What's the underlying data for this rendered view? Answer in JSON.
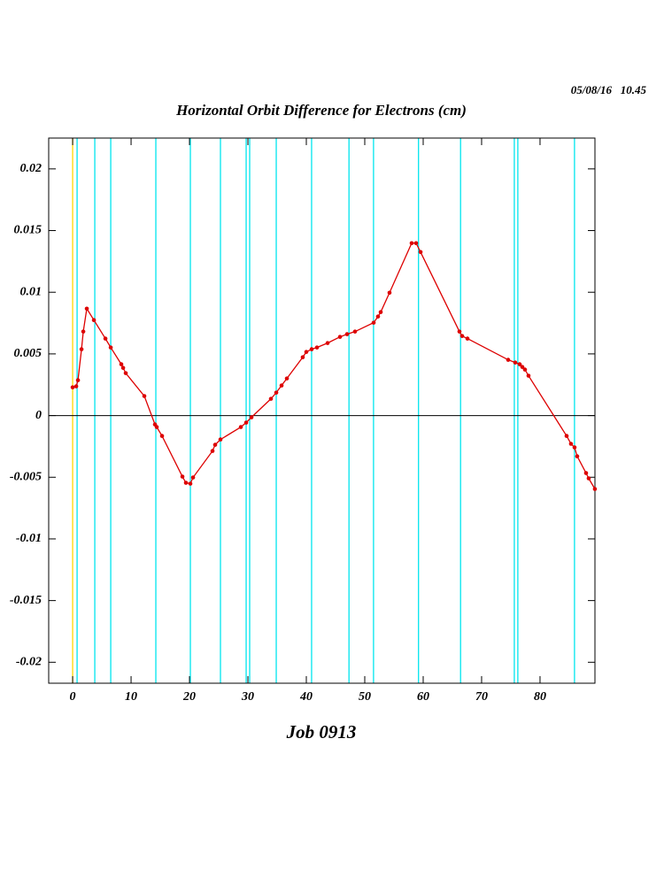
{
  "chart_data": {
    "type": "line",
    "title": "Horizontal Orbit Difference for Electrons (cm)",
    "timestamp": "05/08/16   10.45",
    "xlabel": "Job 0913",
    "xlim": [
      -4.1,
      89.4
    ],
    "ylim": [
      -0.0217,
      0.0225
    ],
    "xticks": [
      0,
      10,
      20,
      30,
      40,
      50,
      60,
      70,
      80
    ],
    "yticks": [
      -0.02,
      -0.015,
      -0.01,
      -0.005,
      0,
      0.005,
      0.01,
      0.015,
      0.02
    ],
    "zero_line": {
      "y": 0,
      "color": "#000000"
    },
    "reference_line": {
      "x": 0,
      "color": "#ffd700"
    },
    "vlines": {
      "color": "#00e5ee",
      "x": [
        0.76,
        3.79,
        6.52,
        14.24,
        20.15,
        25.3,
        29.7,
        30.3,
        34.85,
        40.9,
        47.3,
        51.5,
        59.2,
        66.4,
        75.6,
        76.2,
        85.9
      ]
    },
    "color": "#dd0000",
    "x": [
      0,
      0.61,
      0.91,
      1.52,
      1.82,
      2.42,
      3.64,
      5.61,
      6.52,
      8.33,
      8.64,
      9.09,
      12.27,
      14.09,
      14.39,
      15.3,
      18.79,
      19.39,
      20.15,
      20.61,
      23.94,
      24.39,
      25.3,
      28.79,
      29.7,
      30.61,
      33.94,
      34.85,
      35.76,
      36.67,
      39.39,
      40,
      40.91,
      41.82,
      43.64,
      45.76,
      46.97,
      48.33,
      51.52,
      52.27,
      52.73,
      54.24,
      58.03,
      58.79,
      59.55,
      66.21,
      66.67,
      67.58,
      74.55,
      75.76,
      76.52,
      76.97,
      77.42,
      78.03,
      84.55,
      85.3,
      85.91,
      86.36,
      87.88,
      88.33,
      89.39
    ],
    "values": [
      0.00229,
      0.00237,
      0.00287,
      0.00538,
      0.00681,
      0.00867,
      0.00774,
      0.00624,
      0.00552,
      0.00416,
      0.00387,
      0.00344,
      0.00158,
      -0.00072,
      -0.00093,
      -0.00165,
      -0.00495,
      -0.00545,
      -0.00552,
      -0.00502,
      -0.00287,
      -0.00237,
      -0.00194,
      -0.00093,
      -0.00057,
      -0.00014,
      0.00136,
      0.00186,
      0.00244,
      0.00301,
      0.00473,
      0.00516,
      0.00538,
      0.00552,
      0.00588,
      0.00638,
      0.0066,
      0.00681,
      0.00753,
      0.00803,
      0.00839,
      0.00996,
      0.01398,
      0.01398,
      0.01326,
      0.00681,
      0.00645,
      0.00624,
      0.00452,
      0.0043,
      0.00416,
      0.00394,
      0.00373,
      0.00323,
      -0.00165,
      -0.00229,
      -0.00258,
      -0.0033,
      -0.00466,
      -0.00509,
      -0.00595
    ]
  }
}
